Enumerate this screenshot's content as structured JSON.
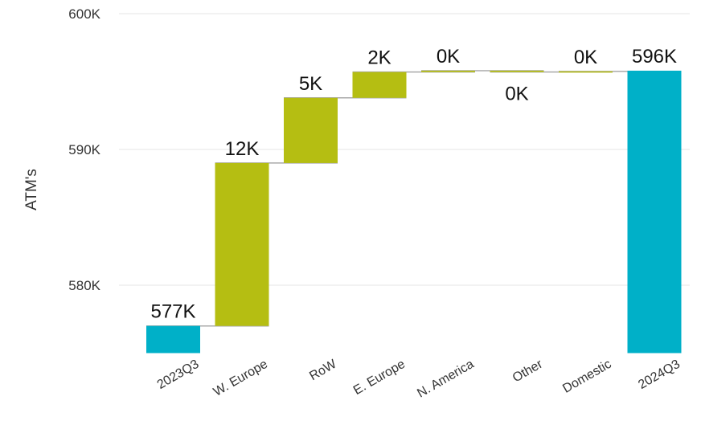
{
  "chart_data": {
    "type": "bar",
    "subtype": "waterfall",
    "title": "",
    "xlabel": "",
    "ylabel": "ATM's",
    "ylim": [
      575000,
      600000
    ],
    "y_ticks": [
      {
        "value": 580000,
        "label": "580K"
      },
      {
        "value": 590000,
        "label": "590K"
      },
      {
        "value": 600000,
        "label": "600K"
      }
    ],
    "grid": true,
    "legend": "none",
    "colors": {
      "total": "#00b0c8",
      "change": "#b5be12",
      "connector": "#aaaaaa",
      "grid": "#e6e6e6"
    },
    "categories": [
      "2023Q3",
      "W. Europe",
      "RoW",
      "E. Europe",
      "N. America",
      "Other",
      "Domestic",
      "2024Q3"
    ],
    "bars": [
      {
        "category": "2023Q3",
        "kind": "total",
        "start": 575000,
        "end": 577000,
        "label": "577K"
      },
      {
        "category": "W. Europe",
        "kind": "change",
        "start": 577000,
        "end": 589000,
        "label": "12K"
      },
      {
        "category": "RoW",
        "kind": "change",
        "start": 589000,
        "end": 593800,
        "label": "5K"
      },
      {
        "category": "E. Europe",
        "kind": "change",
        "start": 593800,
        "end": 595700,
        "label": "2K"
      },
      {
        "category": "N. America",
        "kind": "change",
        "start": 595700,
        "end": 595800,
        "label": "0K"
      },
      {
        "category": "Other",
        "kind": "change",
        "start": 595800,
        "end": 595700,
        "label": "0K"
      },
      {
        "category": "Domestic",
        "kind": "change",
        "start": 595700,
        "end": 595750,
        "label": "0K"
      },
      {
        "category": "2024Q3",
        "kind": "total",
        "start": 575000,
        "end": 595800,
        "label": "596K"
      }
    ]
  }
}
